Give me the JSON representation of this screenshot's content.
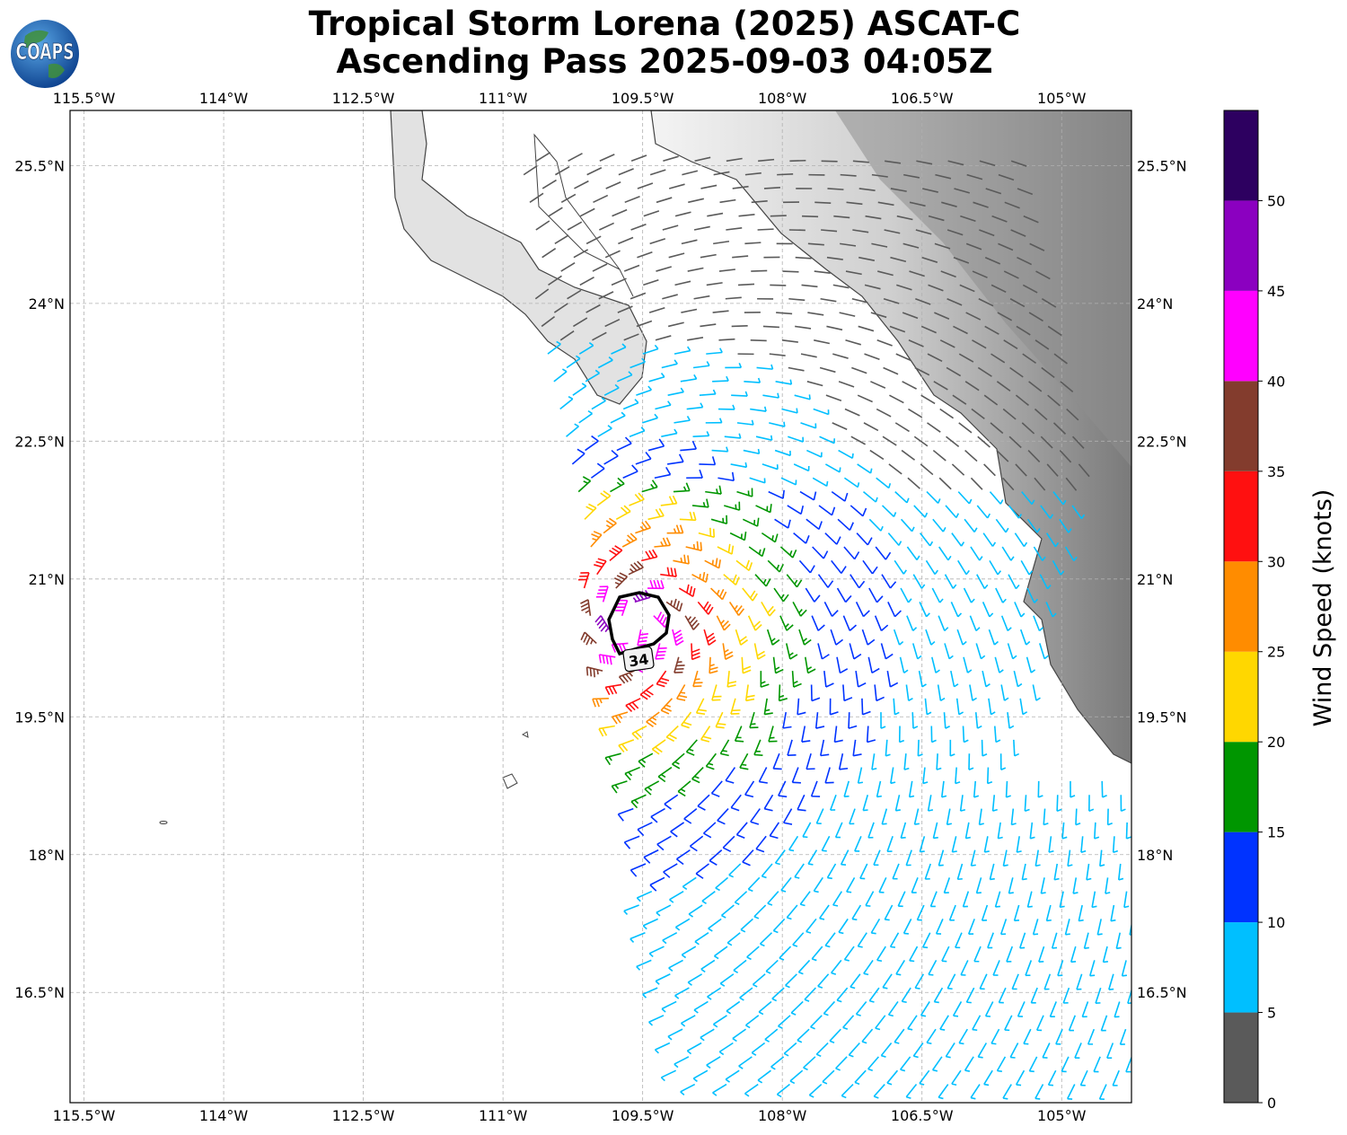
{
  "title": {
    "line1": "Tropical Storm Lorena (2025) ASCAT-C",
    "line2": "Ascending Pass 2025-09-03 04:05Z"
  },
  "logo": {
    "text": "COAPS",
    "icon": "globe-icon"
  },
  "map": {
    "lon_range": [
      -115.65,
      -104.25
    ],
    "lat_range": [
      15.3,
      26.1
    ],
    "lon_ticks": [
      "115.5°W",
      "114°W",
      "112.5°W",
      "111°W",
      "109.5°W",
      "108°W",
      "106.5°W",
      "105°W"
    ],
    "lon_tick_values": [
      -115.5,
      -114,
      -112.5,
      -111,
      -109.5,
      -108,
      -106.5,
      -105
    ],
    "lat_ticks": [
      "25.5°N",
      "24°N",
      "22.5°N",
      "21°N",
      "19.5°N",
      "18°N",
      "16.5°N"
    ],
    "lat_tick_values": [
      25.5,
      24,
      22.5,
      21,
      19.5,
      18,
      16.5
    ],
    "gridlines": true,
    "storm_center": [
      -109.6,
      20.5
    ],
    "contour_label": "34"
  },
  "colorbar": {
    "label": "Wind Speed (knots)",
    "ticks": [
      "0",
      "5",
      "10",
      "15",
      "20",
      "25",
      "30",
      "35",
      "40",
      "45",
      "50"
    ],
    "bins": [
      {
        "min": 0,
        "max": 5,
        "color": "#5a5a5a"
      },
      {
        "min": 5,
        "max": 10,
        "color": "#00bfff"
      },
      {
        "min": 10,
        "max": 15,
        "color": "#0033ff"
      },
      {
        "min": 15,
        "max": 20,
        "color": "#009600"
      },
      {
        "min": 20,
        "max": 25,
        "color": "#ffd700"
      },
      {
        "min": 25,
        "max": 30,
        "color": "#ff8c00"
      },
      {
        "min": 30,
        "max": 35,
        "color": "#ff1010"
      },
      {
        "min": 35,
        "max": 40,
        "color": "#833c2d"
      },
      {
        "min": 40,
        "max": 45,
        "color": "#ff00ff"
      },
      {
        "min": 45,
        "max": 50,
        "color": "#8b00c0"
      },
      {
        "min": 50,
        "max": 55,
        "color": "#2d0060"
      }
    ]
  }
}
